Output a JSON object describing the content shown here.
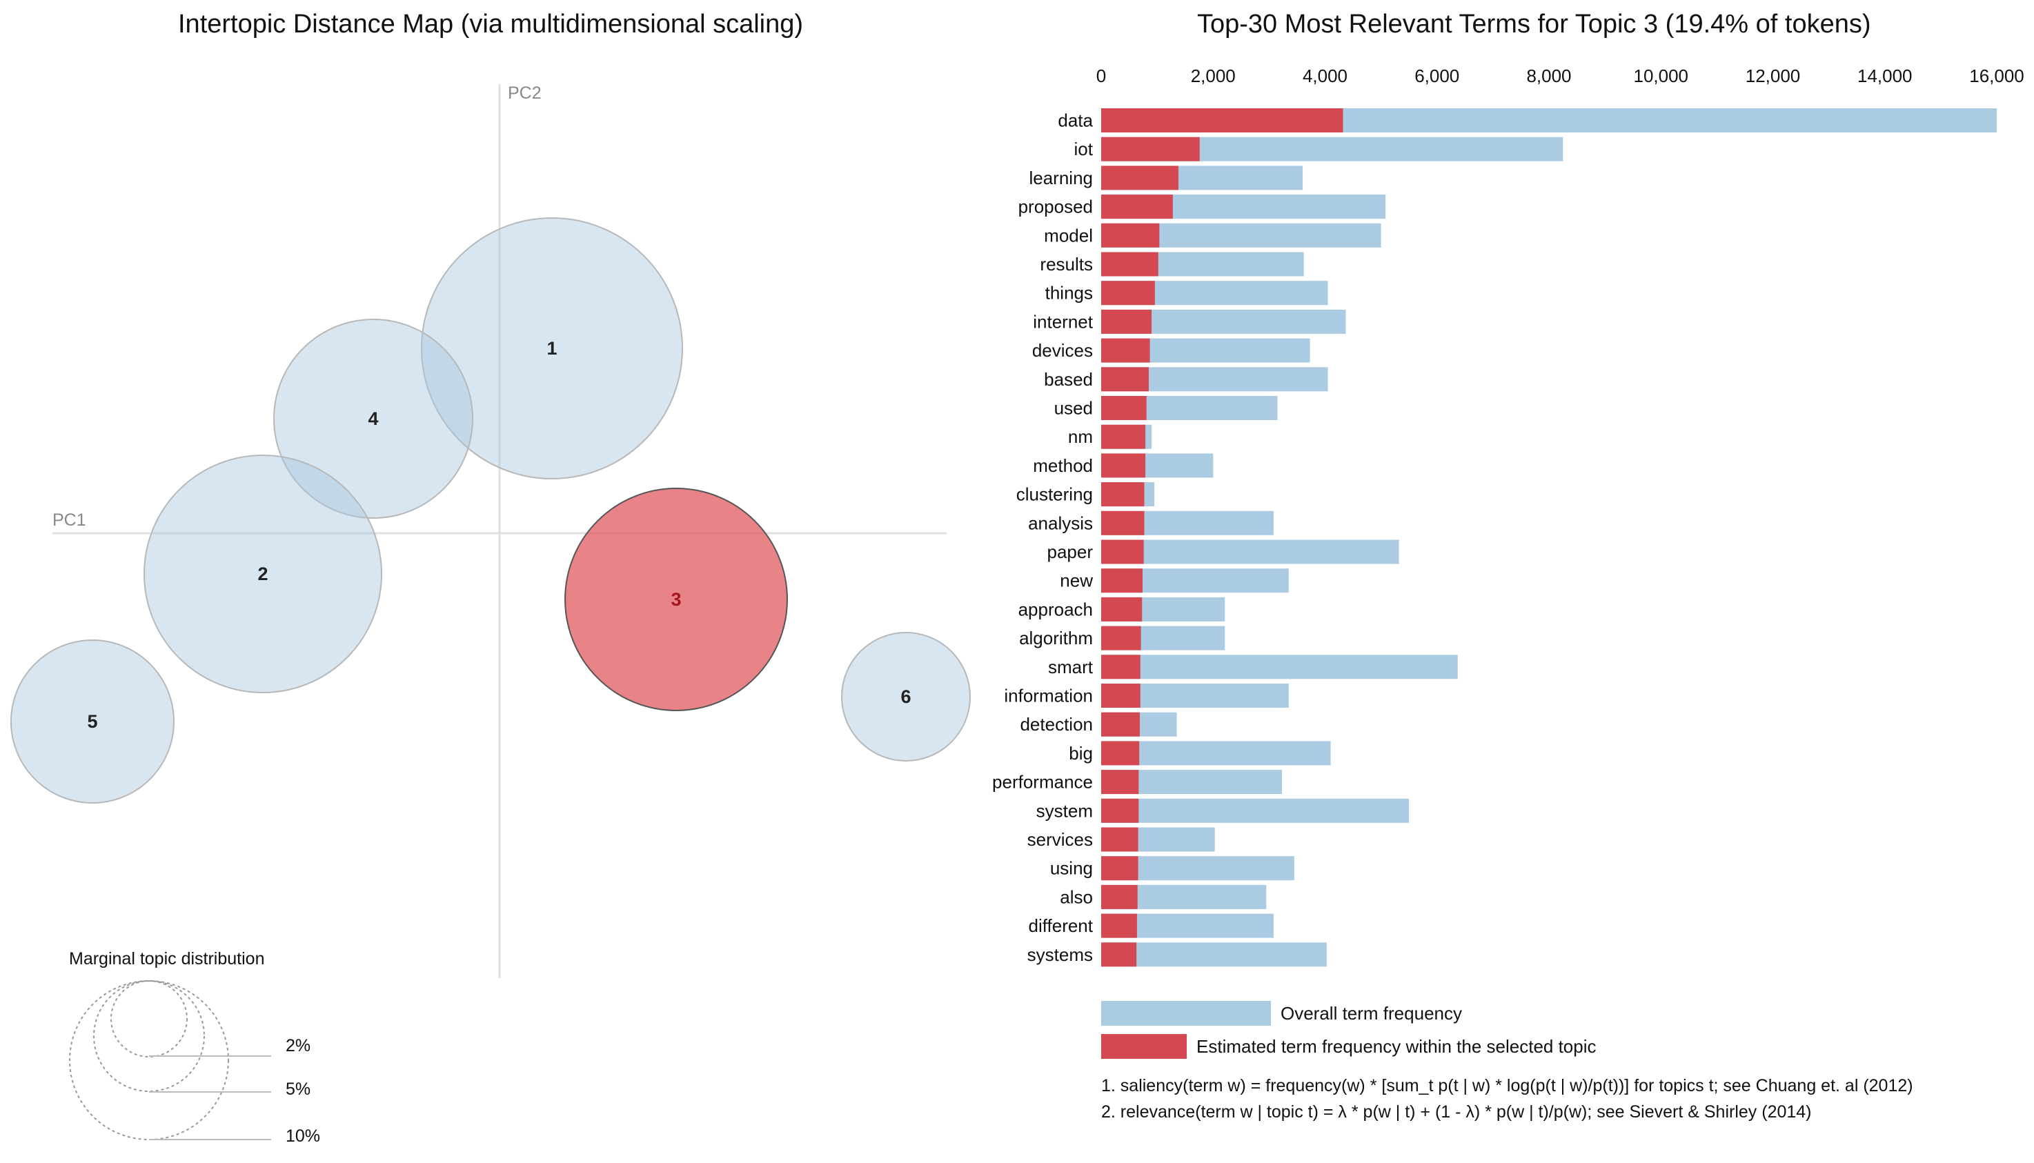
{
  "mds": {
    "title": "Intertopic Distance Map (via multidimensional scaling)",
    "axis_x_label": "PC1",
    "axis_y_label": "PC2",
    "selected_topic": 3,
    "marginal_title": "Marginal topic distribution",
    "marginal_levels": [
      "2%",
      "5%",
      "10%"
    ],
    "colors": {
      "topic": "#a9c8e0",
      "selected": "#e05a60"
    }
  },
  "chart_data": {
    "type": "bar",
    "orientation": "horizontal",
    "stacked_overlay": true,
    "title": "Top-30 Most Relevant Terms for Topic 3 (19.4% of tokens)",
    "xlim": [
      0,
      16000
    ],
    "x_ticks": [
      0,
      2000,
      4000,
      6000,
      8000,
      10000,
      12000,
      14000,
      16000
    ],
    "x_tick_labels": [
      "0",
      "2,000",
      "4,000",
      "6,000",
      "8,000",
      "10,000",
      "12,000",
      "14,000",
      "16,000"
    ],
    "categories": [
      "data",
      "iot",
      "learning",
      "proposed",
      "model",
      "results",
      "things",
      "internet",
      "devices",
      "based",
      "used",
      "nm",
      "method",
      "clustering",
      "analysis",
      "paper",
      "new",
      "approach",
      "algorithm",
      "smart",
      "information",
      "detection",
      "big",
      "performance",
      "system",
      "services",
      "using",
      "also",
      "different",
      "systems"
    ],
    "series": [
      {
        "name": "Overall term frequency",
        "color": "#aacbe2",
        "values": [
          16000,
          8250,
          3600,
          5080,
          5000,
          3620,
          4050,
          4370,
          3730,
          4050,
          3150,
          900,
          2000,
          950,
          3080,
          5320,
          3350,
          2210,
          2210,
          6370,
          3350,
          1350,
          4100,
          3230,
          5500,
          2030,
          3450,
          2950,
          3080,
          4030
        ]
      },
      {
        "name": "Estimated term frequency within the selected topic",
        "color": "#d44951",
        "values": [
          4320,
          1760,
          1380,
          1280,
          1040,
          1020,
          960,
          900,
          870,
          850,
          810,
          790,
          790,
          770,
          770,
          760,
          740,
          730,
          710,
          700,
          700,
          690,
          680,
          670,
          670,
          660,
          660,
          650,
          640,
          630
        ]
      }
    ],
    "legend": [
      "Overall term frequency",
      "Estimated term frequency within the selected topic"
    ],
    "footnotes": [
      "1. saliency(term w) = frequency(w) * [sum_t p(t | w) * log(p(t | w)/p(t))] for topics t; see Chuang et. al (2012)",
      "2. relevance(term w | topic t) = λ * p(w | t) + (1 - λ) * p(w | t)/p(w); see Sievert & Shirley (2014)"
    ]
  }
}
